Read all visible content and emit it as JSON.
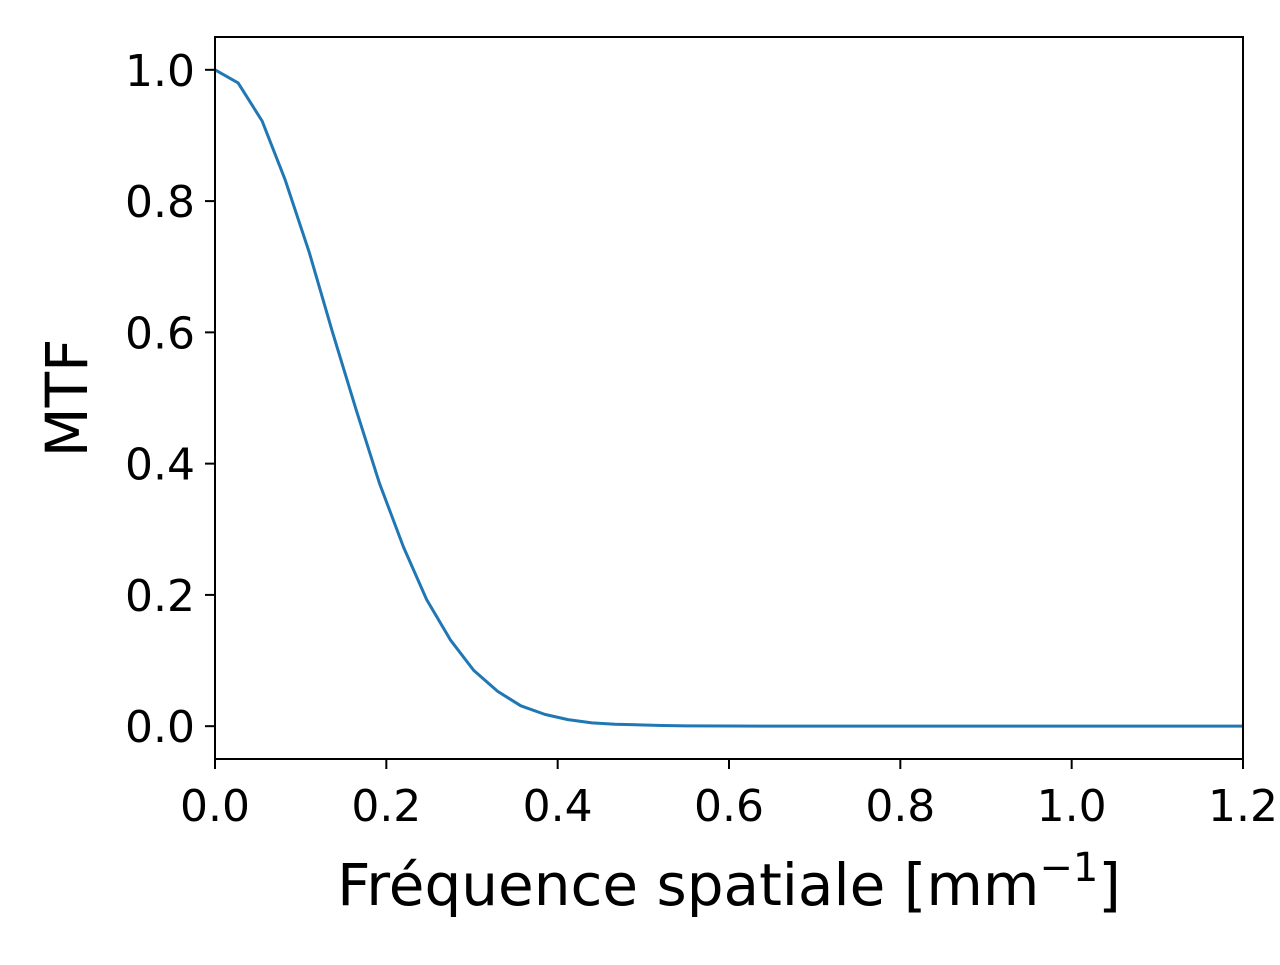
{
  "chart_data": {
    "type": "line",
    "title": "",
    "xlabel": "Fréquence spatiale [mm",
    "xlabel_superscript": "−1",
    "xlabel_suffix": "]",
    "ylabel": "MTF",
    "xlim": [
      0.0,
      1.2
    ],
    "ylim": [
      -0.05,
      1.05
    ],
    "xticks": [
      0.0,
      0.2,
      0.4,
      0.6,
      0.8,
      1.0,
      1.2
    ],
    "xtick_labels": [
      "0.0",
      "0.2",
      "0.4",
      "0.6",
      "0.8",
      "1.0",
      "1.2"
    ],
    "yticks": [
      0.0,
      0.2,
      0.4,
      0.6,
      0.8,
      1.0
    ],
    "ytick_labels": [
      "0.0",
      "0.2",
      "0.4",
      "0.6",
      "0.8",
      "1.0"
    ],
    "grid": false,
    "legend": "none",
    "series": [
      {
        "color": "#1f77b4",
        "x": [
          0.0,
          0.027,
          0.055,
          0.082,
          0.11,
          0.137,
          0.165,
          0.192,
          0.22,
          0.247,
          0.275,
          0.302,
          0.33,
          0.357,
          0.385,
          0.412,
          0.44,
          0.467,
          0.495,
          0.522,
          0.55,
          0.6,
          0.7,
          0.8,
          0.9,
          1.0,
          1.1,
          1.2
        ],
        "y": [
          1.0,
          0.98,
          0.922,
          0.832,
          0.722,
          0.601,
          0.481,
          0.37,
          0.273,
          0.193,
          0.131,
          0.085,
          0.053,
          0.031,
          0.018,
          0.01,
          0.005,
          0.003,
          0.002,
          0.001,
          0.0005,
          0.0002,
          0.0,
          0.0,
          0.0,
          0.0,
          0.0,
          0.0
        ]
      }
    ]
  }
}
